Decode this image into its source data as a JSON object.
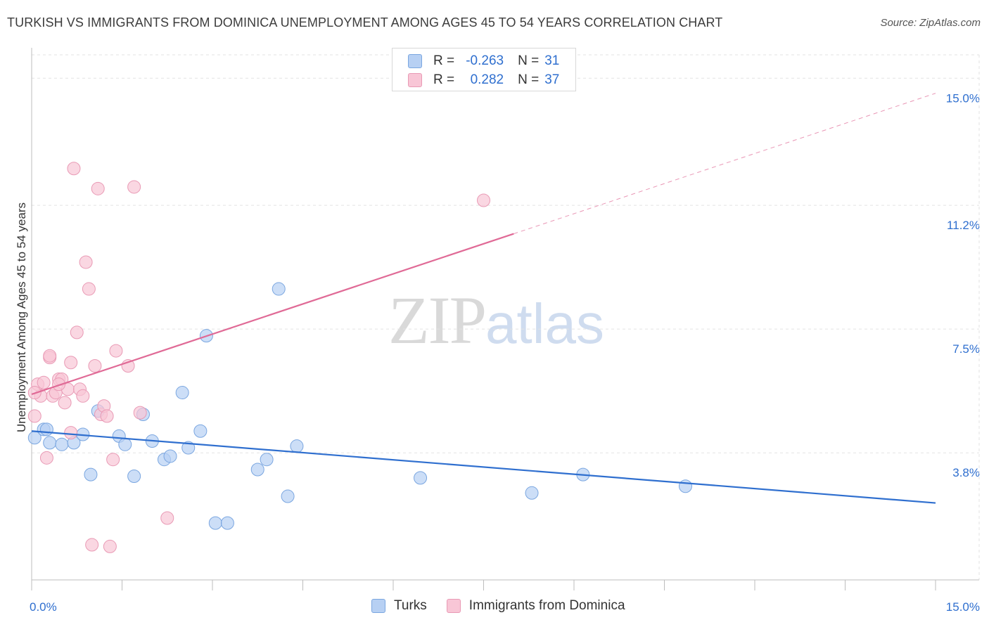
{
  "title": "TURKISH VS IMMIGRANTS FROM DOMINICA UNEMPLOYMENT AMONG AGES 45 TO 54 YEARS CORRELATION CHART",
  "source": "Source: ZipAtlas.com",
  "watermark": {
    "zip": "ZIP",
    "atlas": "atlas"
  },
  "stats": {
    "turks": {
      "r_label": "R =",
      "r_value": "-0.263",
      "n_label": "N =",
      "n_value": "31"
    },
    "dominica": {
      "r_label": "R =",
      "r_value": "0.282",
      "n_label": "N =",
      "n_value": "37"
    }
  },
  "colors": {
    "turks_fill": "#b7d0f3",
    "turks_stroke": "#7aa6e0",
    "turks_line": "#2f6fcf",
    "dominica_fill": "#f8c6d6",
    "dominica_stroke": "#e99ab5",
    "dominica_line": "#e06a96",
    "axis_label": "#2f6fcf"
  },
  "chart_data": {
    "type": "scatter",
    "title": "TURKISH VS IMMIGRANTS FROM DOMINICA UNEMPLOYMENT AMONG AGES 45 TO 54 YEARS CORRELATION CHART",
    "xlabel": "",
    "ylabel": "Unemployment Among Ages 45 to 54 years",
    "xlim": [
      0,
      15
    ],
    "ylim": [
      0,
      15.7
    ],
    "x_tick_labels": [
      {
        "value": 0,
        "label": "0.0%"
      },
      {
        "value": 15,
        "label": "15.0%"
      }
    ],
    "y_tick_labels": [
      {
        "value": 3.8,
        "label": "3.8%"
      },
      {
        "value": 7.5,
        "label": "7.5%"
      },
      {
        "value": 11.2,
        "label": "11.2%"
      },
      {
        "value": 15.0,
        "label": "15.0%"
      }
    ],
    "series": [
      {
        "name": "Turks",
        "points": [
          [
            0.05,
            4.25
          ],
          [
            0.2,
            4.5
          ],
          [
            0.3,
            4.1
          ],
          [
            0.5,
            4.05
          ],
          [
            0.7,
            4.1
          ],
          [
            0.85,
            4.35
          ],
          [
            0.98,
            3.15
          ],
          [
            1.1,
            5.05
          ],
          [
            1.45,
            4.3
          ],
          [
            1.55,
            4.05
          ],
          [
            1.7,
            3.1
          ],
          [
            1.85,
            4.95
          ],
          [
            2.0,
            4.15
          ],
          [
            2.2,
            3.6
          ],
          [
            2.3,
            3.7
          ],
          [
            2.5,
            5.6
          ],
          [
            2.6,
            3.95
          ],
          [
            2.8,
            4.45
          ],
          [
            2.9,
            7.3
          ],
          [
            3.05,
            1.7
          ],
          [
            3.25,
            1.7
          ],
          [
            3.75,
            3.3
          ],
          [
            3.9,
            3.6
          ],
          [
            4.1,
            8.7
          ],
          [
            4.25,
            2.5
          ],
          [
            4.4,
            4.0
          ],
          [
            6.45,
            3.05
          ],
          [
            8.3,
            2.6
          ],
          [
            9.15,
            3.15
          ],
          [
            10.85,
            2.8
          ],
          [
            0.25,
            4.5
          ]
        ],
        "trend": {
          "x0": 0,
          "y0": 4.45,
          "x1": 15,
          "y1": 2.3
        }
      },
      {
        "name": "Immigrants from Dominica",
        "points": [
          [
            0.05,
            4.9
          ],
          [
            0.1,
            5.85
          ],
          [
            0.15,
            5.5
          ],
          [
            0.2,
            5.9
          ],
          [
            0.25,
            3.65
          ],
          [
            0.3,
            6.65
          ],
          [
            0.3,
            6.7
          ],
          [
            0.35,
            5.5
          ],
          [
            0.4,
            5.6
          ],
          [
            0.45,
            6.0
          ],
          [
            0.5,
            6.0
          ],
          [
            0.55,
            5.3
          ],
          [
            0.6,
            5.7
          ],
          [
            0.65,
            6.5
          ],
          [
            0.65,
            4.4
          ],
          [
            0.7,
            12.3
          ],
          [
            0.75,
            7.4
          ],
          [
            0.8,
            5.7
          ],
          [
            0.85,
            5.5
          ],
          [
            0.9,
            9.5
          ],
          [
            0.95,
            8.7
          ],
          [
            1.0,
            1.05
          ],
          [
            1.05,
            6.4
          ],
          [
            1.1,
            11.7
          ],
          [
            1.15,
            4.95
          ],
          [
            1.2,
            5.2
          ],
          [
            1.3,
            1.0
          ],
          [
            1.35,
            3.6
          ],
          [
            1.4,
            6.85
          ],
          [
            1.6,
            6.4
          ],
          [
            1.7,
            11.75
          ],
          [
            1.8,
            5.0
          ],
          [
            2.25,
            1.85
          ],
          [
            7.5,
            11.35
          ],
          [
            0.05,
            5.6
          ],
          [
            0.45,
            5.85
          ],
          [
            1.25,
            4.9
          ]
        ],
        "trend": {
          "x0": 0,
          "y0": 5.55,
          "x1": 8.0,
          "y1": 10.35
        },
        "trend_extension": {
          "x0": 8.0,
          "y0": 10.35,
          "x1": 15,
          "y1": 14.55
        }
      }
    ],
    "legend": [
      "Turks",
      "Immigrants from Dominica"
    ],
    "legend_position": "bottom-center",
    "grid": true
  }
}
